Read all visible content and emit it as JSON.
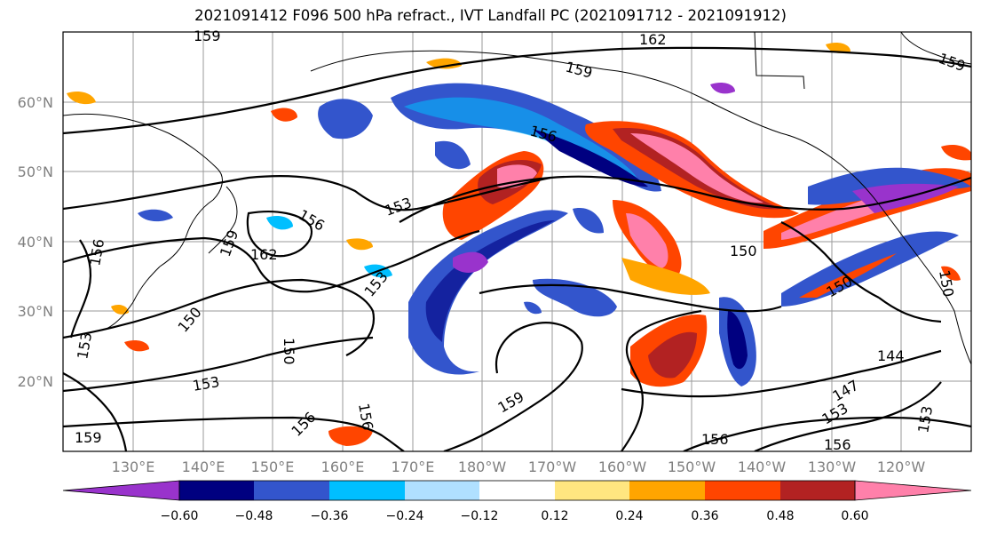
{
  "title": "2021091412 F096 500 hPa refract., IVT Landfall PC (2021091712 - 2021091912)",
  "latitude_labels": [
    "60°N",
    "50°N",
    "40°N",
    "30°N",
    "20°N"
  ],
  "longitude_labels": [
    "130°E",
    "140°E",
    "150°E",
    "160°E",
    "170°E",
    "180°W",
    "170°W",
    "160°W",
    "150°W",
    "140°W",
    "130°W",
    "120°W"
  ],
  "colorbar": {
    "colors": [
      "#9933cc",
      "#000080",
      "#3355cc",
      "#00bfff",
      "#b0e0ff",
      "#ffffff",
      "#ffe680",
      "#ffa500",
      "#ff4500",
      "#b22222",
      "#ff80aa"
    ],
    "tick_labels": [
      "−0.60",
      "−0.48",
      "−0.36",
      "−0.24",
      "−0.12",
      "0.12",
      "0.24",
      "0.36",
      "0.48",
      "0.60"
    ]
  },
  "contour_labels": [
    "159",
    "162",
    "159",
    "156",
    "153",
    "156",
    "159",
    "162",
    "150",
    "153",
    "150",
    "153",
    "150",
    "156",
    "159",
    "153",
    "156",
    "159",
    "150",
    "150",
    "144",
    "147",
    "153",
    "156",
    "156",
    "153",
    "159",
    "156"
  ]
}
